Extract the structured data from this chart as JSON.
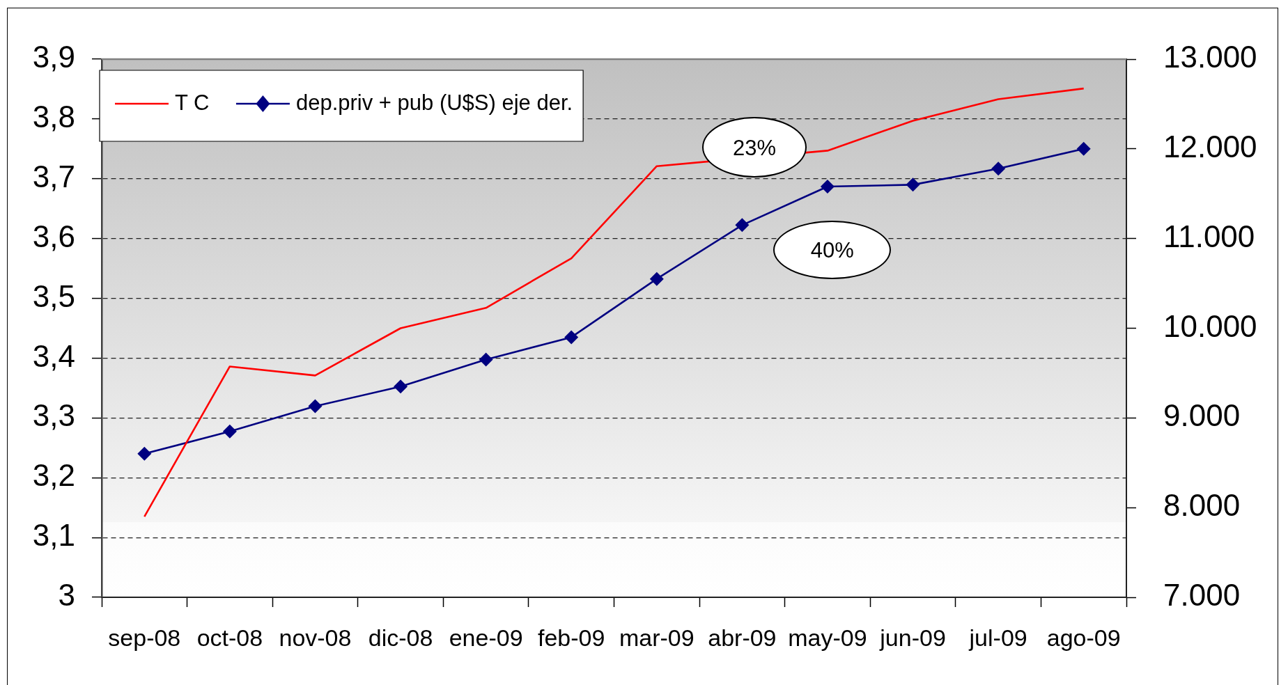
{
  "chart_data": {
    "type": "line",
    "categories": [
      "sep-08",
      "oct-08",
      "nov-08",
      "dic-08",
      "ene-09",
      "feb-09",
      "mar-09",
      "abr-09",
      "may-09",
      "jun-09",
      "jul-09",
      "ago-09"
    ],
    "series": [
      {
        "name": "T C",
        "color": "#ff0000",
        "marker": "none",
        "values": [
          3.135,
          3.386,
          3.371,
          3.45,
          3.484,
          3.567,
          3.721,
          null,
          3.747,
          3.797,
          3.833,
          3.851
        ]
      },
      {
        "name": "dep.priv + pub (U$S) eje der.",
        "color": "#000080",
        "axis": "y2",
        "marker": "diamond",
        "values": [
          8600,
          8850,
          9130,
          9350,
          9650,
          9900,
          10550,
          11150,
          11580,
          11600,
          11780,
          12000
        ]
      }
    ],
    "ylim": [
      3,
      3.9
    ],
    "yticks": [
      3,
      {
        "value": 3.1,
        "label": "3,1"
      },
      {
        "value": 3.2,
        "label": "3,2"
      },
      {
        "value": 3.3,
        "label": "3,3"
      },
      {
        "value": 3.4,
        "label": "3,4"
      },
      {
        "value": 3.5,
        "label": "3,5"
      },
      {
        "value": 3.6,
        "label": "3,6"
      },
      {
        "value": 3.7,
        "label": "3,7"
      },
      {
        "value": 3.8,
        "label": "3,8"
      },
      {
        "value": 3.9,
        "label": "3,9"
      }
    ],
    "y2lim": [
      7000,
      13000
    ],
    "y2ticks": [
      {
        "value": 7000,
        "label": "7.000"
      },
      {
        "value": 8000,
        "label": "8.000"
      },
      {
        "value": 9000,
        "label": "9.000"
      },
      {
        "value": 10000,
        "label": "10.000"
      },
      {
        "value": 11000,
        "label": "11.000"
      },
      {
        "value": 12000,
        "label": "12.000"
      },
      {
        "value": 13000,
        "label": "13.000"
      }
    ],
    "annotations": [
      "23%",
      "40%"
    ],
    "grid": "y",
    "legend": "top left"
  }
}
